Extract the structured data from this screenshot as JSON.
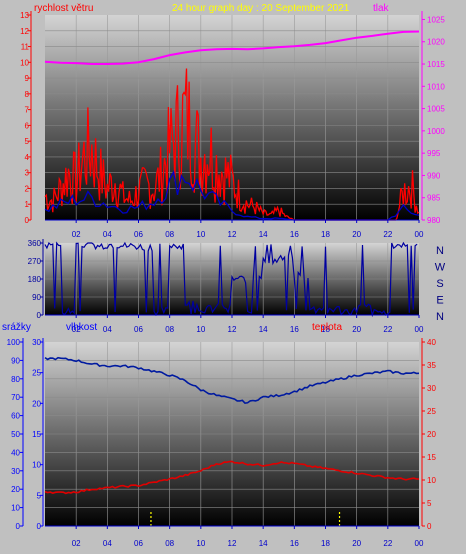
{
  "header": {
    "left_label": "rychlost větru",
    "title": "24 hour graph day : 20 September 2021",
    "right_label": "tlak"
  },
  "middle": {
    "compass_labels": [
      "N",
      "W",
      "S",
      "E",
      "N"
    ]
  },
  "bottom_header": {
    "left_label": "srážky",
    "middle_label": "vlhkost",
    "right_label": "teplota"
  },
  "colors": {
    "background": "#c0c0c0",
    "wind_speed": "#ff0000",
    "wind_avg": "#0000c8",
    "pressure": "#ff00ff",
    "direction": "#0000a0",
    "humidity": "#001aa0",
    "temperature": "#e00000",
    "rain": "#ffff00",
    "title": "#ffff00",
    "left_axis": "#ff0000",
    "right_axis": "#ff00ff",
    "bottom_left_axis": "#0000ff",
    "bottom_right_axis": "#ff0000"
  },
  "chart_data": [
    {
      "type": "line",
      "x_ticks": [
        "02",
        "04",
        "06",
        "08",
        "10",
        "12",
        "14",
        "16",
        "18",
        "20",
        "22",
        "00"
      ],
      "y_left_ticks": [
        "0",
        "1",
        "2",
        "3",
        "4",
        "5",
        "6",
        "7",
        "8",
        "9",
        "10",
        "11",
        "12",
        "13"
      ],
      "y_left_lim": [
        0,
        13
      ],
      "y_right_ticks": [
        "980",
        "985",
        "990",
        "995",
        "1000",
        "1005",
        "1010",
        "1015",
        "1020",
        "1025"
      ],
      "y_right_lim": [
        980,
        1026
      ],
      "x_lim": [
        0,
        24
      ],
      "series": [
        {
          "axis": "right",
          "x": [
            0,
            1,
            2,
            3,
            4,
            5,
            6,
            7,
            8,
            9,
            10,
            11,
            12,
            13,
            14,
            15,
            16,
            17,
            18,
            19,
            20,
            21,
            22,
            23,
            24
          ],
          "values": [
            1015.5,
            1015.3,
            1015.2,
            1015.0,
            1015.0,
            1015.1,
            1015.4,
            1016.1,
            1017.0,
            1017.6,
            1018.1,
            1018.3,
            1018.4,
            1018.3,
            1018.5,
            1018.8,
            1019.0,
            1019.3,
            1019.7,
            1020.3,
            1020.9,
            1021.3,
            1021.8,
            1022.2,
            1022.3
          ]
        },
        {
          "axis": "left",
          "x": [
            0,
            0.5,
            1,
            1.5,
            2,
            2.5,
            3,
            3.5,
            4,
            4.5,
            5,
            5.5,
            6,
            6.5,
            7,
            7.5,
            8,
            8.5,
            9,
            9.5,
            10,
            10.5,
            11,
            11.5,
            12,
            12.5,
            13,
            13.5,
            14,
            14.5,
            15,
            15.5,
            16,
            16.5,
            17,
            17.5,
            18,
            18.5,
            19,
            19.5,
            20,
            20.5,
            21,
            21.5,
            22,
            22.5,
            23,
            23.5,
            24
          ],
          "values": [
            1.5,
            1.2,
            2.0,
            3.0,
            2.5,
            4.0,
            4.5,
            3.0,
            2.0,
            2.5,
            1.5,
            1.2,
            1.8,
            2.2,
            2.0,
            3.0,
            4.5,
            5.5,
            6.5,
            5.5,
            4.0,
            4.5,
            3.5,
            3.0,
            2.5,
            1.5,
            1.0,
            0.8,
            0.4,
            0.3,
            0.6,
            0.2,
            0.0,
            0.0,
            0.0,
            0.0,
            0.0,
            0.0,
            0.0,
            0.0,
            0.0,
            0.0,
            0.0,
            0.0,
            0.0,
            0.0,
            1.8,
            2.2,
            0.5
          ]
        },
        {
          "axis": "left",
          "x": [
            0,
            1,
            2,
            3,
            4,
            5,
            6,
            7,
            8,
            9,
            10,
            11,
            12,
            13,
            14,
            15,
            16,
            17,
            18,
            19,
            20,
            21,
            22,
            23,
            24
          ],
          "values": [
            0.6,
            1.0,
            1.3,
            1.4,
            1.0,
            0.7,
            0.8,
            1.2,
            2.2,
            2.9,
            1.9,
            1.2,
            0.6,
            0.2,
            0.1,
            0.1,
            0,
            0,
            0,
            0,
            0,
            0,
            0,
            0.7,
            0.3
          ]
        }
      ]
    },
    {
      "type": "line",
      "x_ticks": [
        "02",
        "04",
        "06",
        "08",
        "10",
        "12",
        "14",
        "16",
        "18",
        "20",
        "22",
        "00"
      ],
      "y_ticks": [
        "0",
        "90",
        "180",
        "270",
        "360"
      ],
      "ylim": [
        0,
        360
      ],
      "x_lim": [
        0,
        24
      ],
      "series": [
        {
          "x": [
            0,
            1,
            2,
            3,
            4,
            5,
            6,
            7,
            8,
            9,
            10,
            11,
            12,
            13,
            14,
            15,
            16,
            17,
            18,
            19,
            20,
            21,
            22,
            23,
            24
          ],
          "values": [
            350,
            20,
            355,
            350,
            352,
            345,
            340,
            20,
            350,
            60,
            30,
            40,
            180,
            200,
            270,
            280,
            200,
            30,
            30,
            20,
            40,
            10,
            350,
            355,
            350
          ]
        }
      ]
    },
    {
      "type": "line",
      "x_ticks": [
        "02",
        "04",
        "06",
        "08",
        "10",
        "12",
        "14",
        "16",
        "18",
        "20",
        "22",
        "00"
      ],
      "y_left_ticks": [
        "0",
        "10",
        "20",
        "30",
        "40",
        "50",
        "60",
        "70",
        "80",
        "90",
        "100"
      ],
      "y_left_lim": [
        0,
        100
      ],
      "y_mid_ticks": [
        "0",
        "5",
        "10",
        "15",
        "20",
        "25",
        "30"
      ],
      "y_mid_lim": [
        0,
        30
      ],
      "y_right_ticks": [
        "0",
        "5",
        "10",
        "15",
        "20",
        "25",
        "30",
        "35",
        "40"
      ],
      "y_right_lim": [
        0,
        40
      ],
      "x_lim": [
        0,
        24
      ],
      "series": [
        {
          "axis": "left",
          "x": [
            0,
            1,
            2,
            3,
            4,
            5,
            6,
            7,
            8,
            9,
            10,
            11,
            12,
            13,
            14,
            15,
            16,
            17,
            18,
            19,
            20,
            21,
            22,
            23,
            24
          ],
          "values": [
            91,
            91,
            90,
            88,
            87,
            87,
            86,
            84,
            82,
            79,
            74,
            71,
            69,
            67,
            70,
            71,
            73,
            76,
            78,
            80,
            82,
            83,
            84,
            83,
            83
          ]
        },
        {
          "axis": "right",
          "x": [
            0,
            1,
            2,
            3,
            4,
            5,
            6,
            7,
            8,
            9,
            10,
            11,
            12,
            13,
            14,
            15,
            16,
            17,
            18,
            19,
            20,
            21,
            22,
            23,
            24
          ],
          "values": [
            7.5,
            7.2,
            7.4,
            8.0,
            8.3,
            8.6,
            8.8,
            9.5,
            10.2,
            11.0,
            12.0,
            13.5,
            14.0,
            13.5,
            13.2,
            13.8,
            13.6,
            13.0,
            12.5,
            12.0,
            11.5,
            11.0,
            10.5,
            10.2,
            10.2
          ]
        },
        {
          "axis": "mid",
          "x": [
            6.8,
            18.9
          ],
          "values": [
            1,
            1
          ]
        }
      ]
    }
  ]
}
